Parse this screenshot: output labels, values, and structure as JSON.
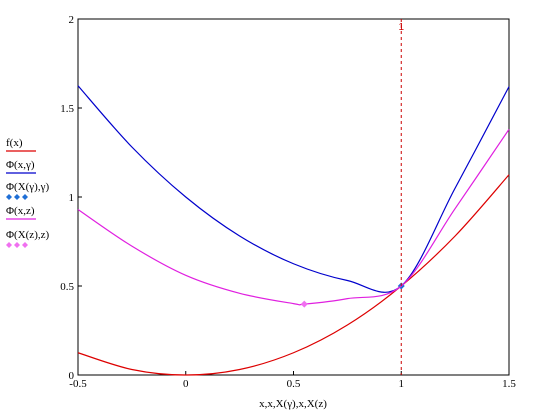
{
  "chart_data": {
    "type": "line",
    "xlabel": "x,x,X(γ),x,X(z)",
    "xlim": [
      -0.5,
      1.5
    ],
    "ylim": [
      0,
      2
    ],
    "xticks": [
      "-0.5",
      "0",
      "0.5",
      "1",
      "1.5"
    ],
    "yticks": [
      "0",
      "0.5",
      "1",
      "1.5",
      "2"
    ],
    "xtick_values": [
      -0.5,
      0,
      0.5,
      1,
      1.5
    ],
    "ytick_values": [
      0,
      0.5,
      1,
      1.5,
      2
    ],
    "vline": {
      "x": 1,
      "label": "1",
      "color": "#cc0000"
    },
    "series": [
      {
        "name": "f(x)",
        "color": "#dd0000",
        "x": [
          -0.5,
          -0.25,
          0,
          0.25,
          0.5,
          0.75,
          1,
          1.25,
          1.5
        ],
        "y": [
          0.125,
          0.031,
          0.0,
          0.031,
          0.125,
          0.281,
          0.5,
          0.781,
          1.125
        ]
      },
      {
        "name": "Φ(x,γ)",
        "color": "#0000cc",
        "x": [
          -0.5,
          -0.25,
          0,
          0.25,
          0.5,
          0.75,
          1,
          1.25,
          1.5
        ],
        "y": [
          1.625,
          1.281,
          1.0,
          0.781,
          0.625,
          0.531,
          0.5,
          1.05,
          1.62
        ]
      },
      {
        "name": "Φ(X(γ),γ)",
        "color": "#1f6fd6",
        "marker": "diamond",
        "x": [
          1
        ],
        "y": [
          0.5
        ]
      },
      {
        "name": "Φ(x,z)",
        "color": "#e020e0",
        "x": [
          -0.5,
          -0.25,
          0,
          0.25,
          0.5,
          0.55,
          0.75,
          1,
          1.25,
          1.5
        ],
        "y": [
          0.93,
          0.724,
          0.56,
          0.459,
          0.401,
          0.398,
          0.429,
          0.5,
          0.935,
          1.38
        ]
      },
      {
        "name": "Φ(X(z),z)",
        "color": "#f070f0",
        "marker": "diamond",
        "x": [
          0.55
        ],
        "y": [
          0.398
        ]
      }
    ]
  }
}
